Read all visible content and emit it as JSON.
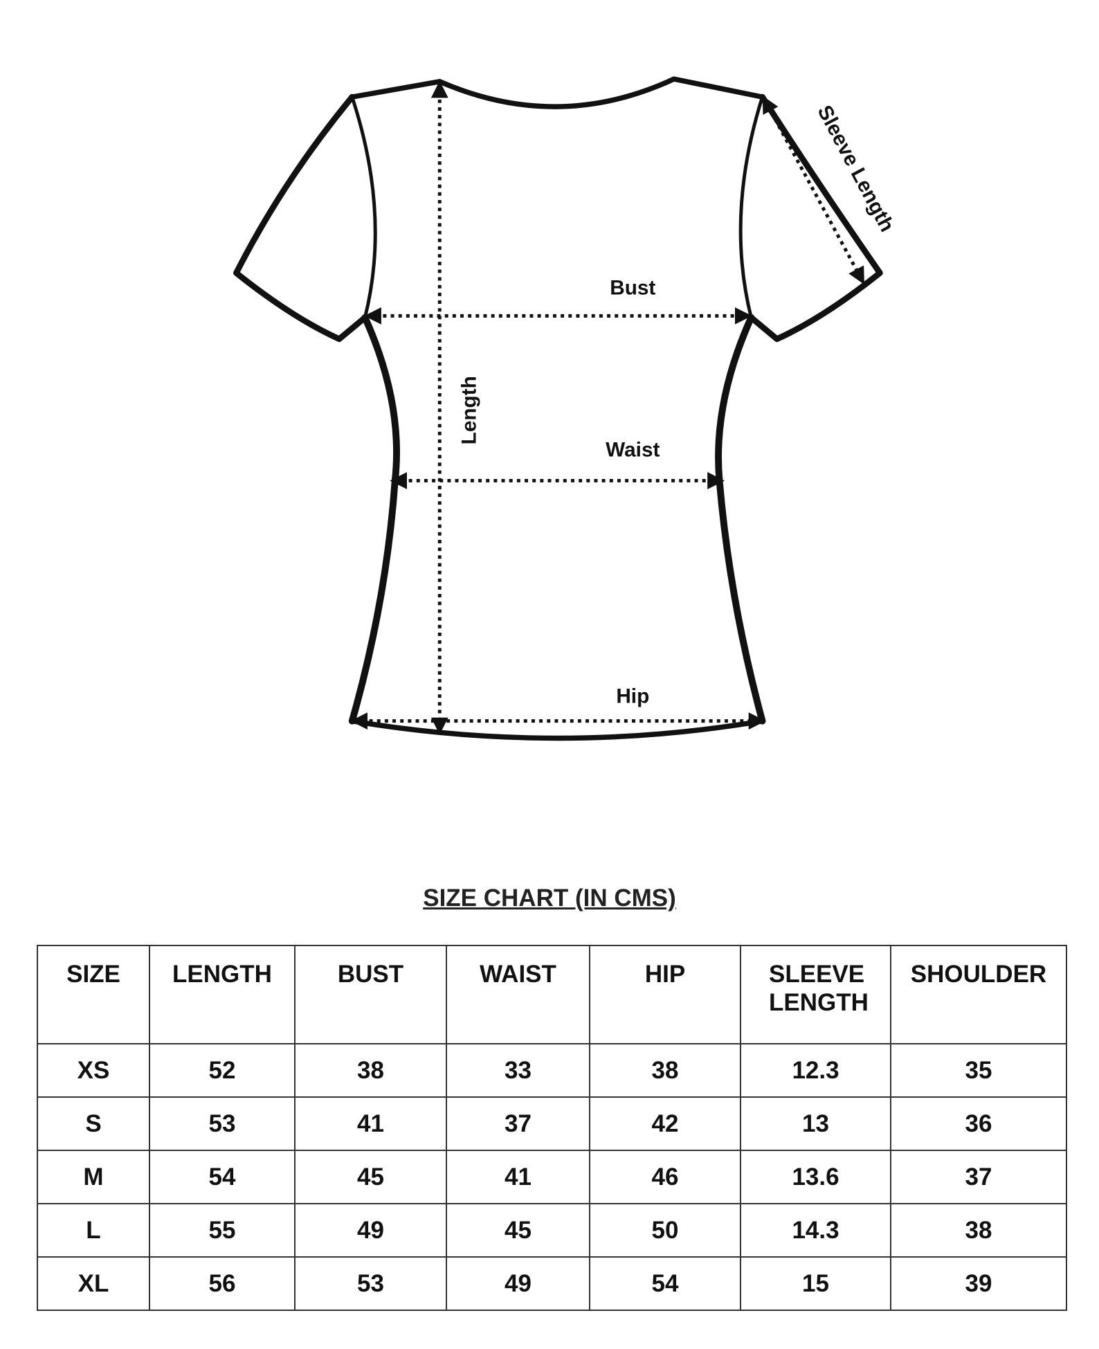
{
  "diagram": {
    "labels": {
      "bust": "Bust",
      "waist": "Waist",
      "hip": "Hip",
      "length": "Length",
      "sleeve_length": "Sleeve Length"
    }
  },
  "size_chart": {
    "title": "SIZE CHART (IN CMS)",
    "headers": [
      "SIZE",
      "LENGTH",
      "BUST",
      "WAIST",
      "HIP",
      "SLEEVE LENGTH",
      "SHOULDER"
    ],
    "rows": [
      [
        "XS",
        "52",
        "38",
        "33",
        "38",
        "12.3",
        "35"
      ],
      [
        "S",
        "53",
        "41",
        "37",
        "42",
        "13",
        "36"
      ],
      [
        "M",
        "54",
        "45",
        "41",
        "46",
        "13.6",
        "37"
      ],
      [
        "L",
        "55",
        "49",
        "45",
        "50",
        "14.3",
        "38"
      ],
      [
        "XL",
        "56",
        "53",
        "49",
        "54",
        "15",
        "39"
      ]
    ]
  }
}
